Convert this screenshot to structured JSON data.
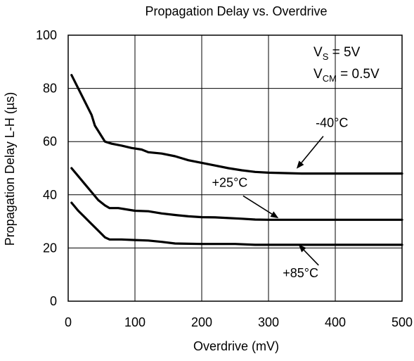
{
  "chart_data": {
    "type": "line",
    "title": "Propagation Delay vs. Overdrive",
    "xlabel": "Overdrive (mV)",
    "ylabel": "Propagation Delay L-H (µs)",
    "xlim": [
      0,
      500
    ],
    "ylim": [
      0,
      100
    ],
    "xticks": [
      0,
      100,
      200,
      300,
      400,
      500
    ],
    "yticks": [
      0,
      20,
      40,
      60,
      80,
      100
    ],
    "grid": true,
    "conditions": {
      "vs": {
        "main": "V",
        "sub": "S",
        "rest": " = 5V"
      },
      "vcm": {
        "main": "V",
        "sub": "CM",
        "rest": " = 0.5V"
      }
    },
    "series": [
      {
        "name": "-40°C",
        "points": [
          [
            5,
            85
          ],
          [
            15,
            80
          ],
          [
            25,
            75
          ],
          [
            35,
            70
          ],
          [
            40,
            66
          ],
          [
            45,
            64
          ],
          [
            50,
            62
          ],
          [
            55,
            60
          ],
          [
            65,
            59.2
          ],
          [
            80,
            58.5
          ],
          [
            95,
            57.6
          ],
          [
            110,
            57
          ],
          [
            120,
            56
          ],
          [
            140,
            55.5
          ],
          [
            160,
            54.5
          ],
          [
            180,
            53
          ],
          [
            200,
            52
          ],
          [
            220,
            51
          ],
          [
            240,
            50
          ],
          [
            260,
            49.2
          ],
          [
            280,
            48.6
          ],
          [
            300,
            48.3
          ],
          [
            350,
            48
          ],
          [
            400,
            48
          ],
          [
            500,
            48
          ]
        ]
      },
      {
        "name": "+25°C",
        "points": [
          [
            5,
            50
          ],
          [
            15,
            47
          ],
          [
            25,
            44
          ],
          [
            35,
            41
          ],
          [
            45,
            38
          ],
          [
            55,
            36
          ],
          [
            62,
            35
          ],
          [
            75,
            35
          ],
          [
            90,
            34.4
          ],
          [
            100,
            34
          ],
          [
            120,
            33.8
          ],
          [
            140,
            33
          ],
          [
            160,
            32.4
          ],
          [
            180,
            31.9
          ],
          [
            200,
            31.6
          ],
          [
            220,
            31.5
          ],
          [
            260,
            31
          ],
          [
            280,
            30.7
          ],
          [
            300,
            30.6
          ],
          [
            400,
            30.6
          ],
          [
            500,
            30.6
          ]
        ]
      },
      {
        "name": "+85°C",
        "points": [
          [
            5,
            37
          ],
          [
            15,
            34
          ],
          [
            25,
            31.5
          ],
          [
            35,
            29
          ],
          [
            45,
            26.5
          ],
          [
            55,
            24
          ],
          [
            62,
            23.2
          ],
          [
            80,
            23.2
          ],
          [
            100,
            23
          ],
          [
            120,
            22.8
          ],
          [
            140,
            22.3
          ],
          [
            160,
            21.7
          ],
          [
            200,
            21.5
          ],
          [
            250,
            21.5
          ],
          [
            280,
            21.2
          ],
          [
            350,
            21.2
          ],
          [
            500,
            21.2
          ]
        ]
      }
    ],
    "annotations": [
      {
        "label": "-40°C",
        "label_at": [
          395,
          65.5
        ],
        "arrow_from": [
          382,
          62
        ],
        "arrow_to": [
          342,
          49.8
        ]
      },
      {
        "label": "+25°C",
        "label_at": [
          242,
          43
        ],
        "arrow_from": [
          262,
          39.6
        ],
        "arrow_to": [
          315,
          31.2
        ]
      },
      {
        "label": "+85°C",
        "label_at": [
          348,
          9
        ],
        "arrow_from": [
          375,
          13.5
        ],
        "arrow_to": [
          345,
          21.3
        ]
      }
    ]
  }
}
